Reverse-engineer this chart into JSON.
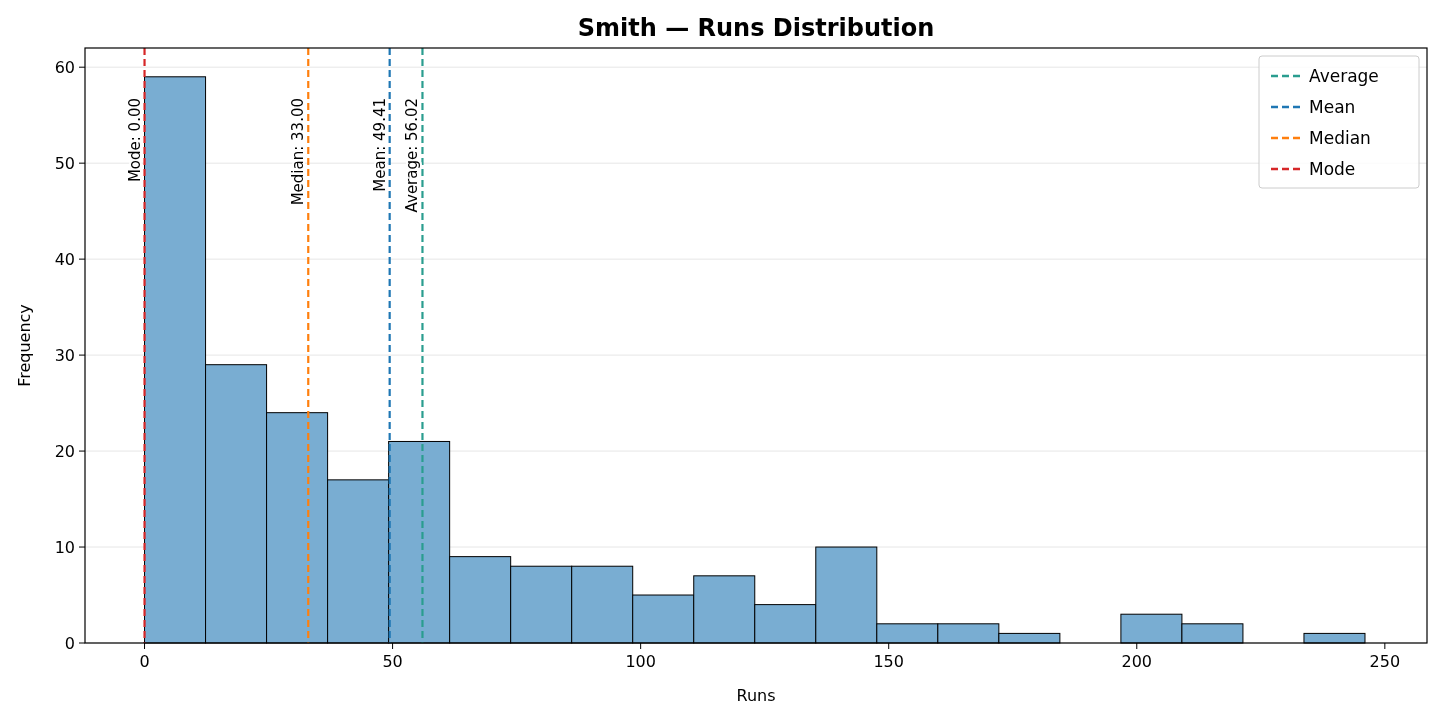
{
  "chart_data": {
    "type": "histogram",
    "title": "Smith — Runs Distribution",
    "xlabel": "Runs",
    "ylabel": "Frequency",
    "bins": [
      0,
      12.3,
      24.6,
      36.9,
      49.2,
      61.5,
      73.8,
      86.1,
      98.4,
      110.7,
      123,
      135.3,
      147.6,
      159.9,
      172.2,
      184.5,
      196.8,
      209.1,
      221.4,
      233.7,
      246
    ],
    "values": [
      59,
      29,
      24,
      17,
      21,
      9,
      8,
      8,
      5,
      7,
      4,
      10,
      2,
      2,
      1,
      0,
      3,
      2,
      0,
      1
    ],
    "color": "#79add2",
    "xlim": [
      -12,
      258.5
    ],
    "ylim": [
      0,
      62
    ],
    "xticks": [
      0,
      50,
      100,
      150,
      200,
      250
    ],
    "yticks": [
      0,
      10,
      20,
      30,
      40,
      50,
      60
    ],
    "grid": "y",
    "ref_lines": [
      {
        "axis": "x",
        "value": 56.02,
        "label": "Average: 56.02",
        "color": "#2a9d8f",
        "line_style": "dashed"
      },
      {
        "axis": "x",
        "value": 49.41,
        "label": "Mean: 49.41",
        "color": "#1f77b4",
        "line_style": "dashed"
      },
      {
        "axis": "x",
        "value": 33,
        "label": "Median: 33.00",
        "color": "#ff7f0e",
        "line_style": "dashed"
      },
      {
        "axis": "x",
        "value": 0,
        "label": "Mode: 0.00",
        "color": "#d62728",
        "line_style": "dashed"
      }
    ],
    "annotations": [
      "Average",
      "Mean",
      "Median",
      "Mode"
    ]
  }
}
